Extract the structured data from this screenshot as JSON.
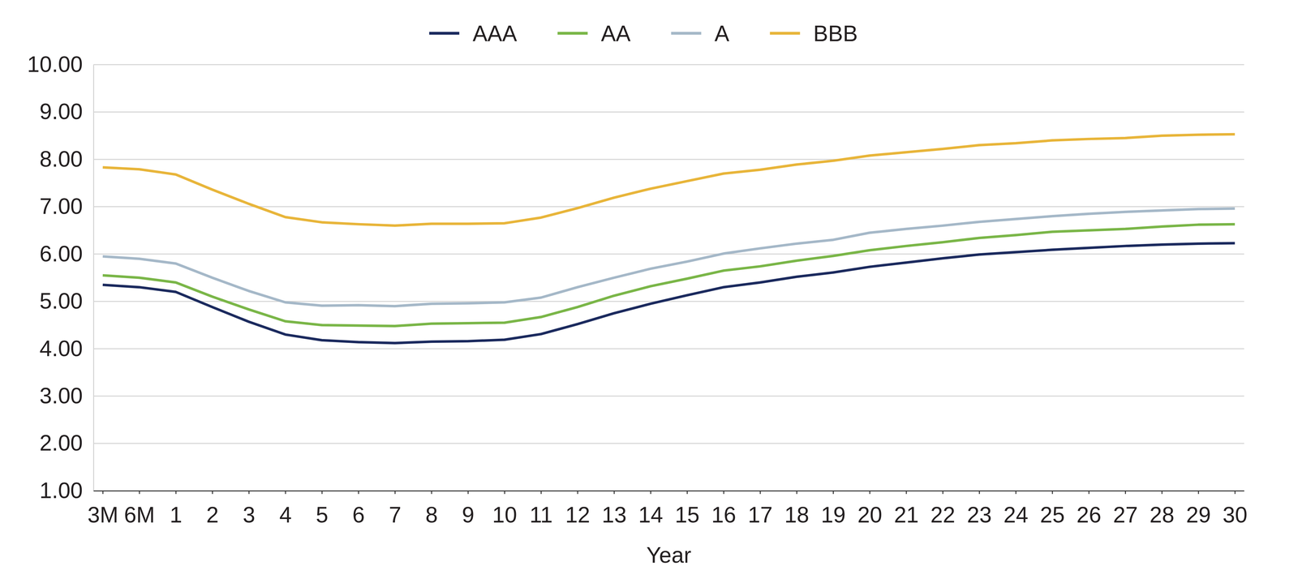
{
  "chart_data": {
    "type": "line",
    "xlabel": "Year",
    "categories": [
      "3M",
      "6M",
      "1",
      "2",
      "3",
      "4",
      "5",
      "6",
      "7",
      "8",
      "9",
      "10",
      "11",
      "12",
      "13",
      "14",
      "15",
      "16",
      "17",
      "18",
      "19",
      "20",
      "21",
      "22",
      "23",
      "24",
      "25",
      "26",
      "27",
      "28",
      "29",
      "30"
    ],
    "series": [
      {
        "name": "AAA",
        "color": "#1b2a5e",
        "values": [
          5.35,
          5.3,
          5.2,
          4.88,
          4.57,
          4.3,
          4.18,
          4.14,
          4.12,
          4.15,
          4.16,
          4.19,
          4.31,
          4.52,
          4.75,
          4.95,
          5.13,
          5.3,
          5.4,
          5.52,
          5.61,
          5.73,
          5.82,
          5.91,
          5.99,
          6.04,
          6.09,
          6.13,
          6.17,
          6.2,
          6.22,
          6.23
        ]
      },
      {
        "name": "AA",
        "color": "#7ab648",
        "values": [
          5.55,
          5.5,
          5.4,
          5.1,
          4.83,
          4.58,
          4.5,
          4.49,
          4.48,
          4.53,
          4.54,
          4.55,
          4.67,
          4.88,
          5.12,
          5.32,
          5.48,
          5.65,
          5.74,
          5.86,
          5.96,
          6.08,
          6.17,
          6.25,
          6.34,
          6.4,
          6.47,
          6.5,
          6.53,
          6.58,
          6.62,
          6.63
        ]
      },
      {
        "name": "A",
        "color": "#a5b8c8",
        "values": [
          5.95,
          5.9,
          5.8,
          5.5,
          5.22,
          4.98,
          4.91,
          4.92,
          4.9,
          4.95,
          4.96,
          4.98,
          5.08,
          5.3,
          5.5,
          5.69,
          5.84,
          6.01,
          6.12,
          6.22,
          6.3,
          6.45,
          6.53,
          6.6,
          6.68,
          6.74,
          6.8,
          6.85,
          6.89,
          6.92,
          6.95,
          6.96
        ]
      },
      {
        "name": "BBB",
        "color": "#e8b53a",
        "values": [
          7.83,
          7.79,
          7.68,
          7.36,
          7.06,
          6.78,
          6.67,
          6.63,
          6.6,
          6.64,
          6.64,
          6.65,
          6.77,
          6.97,
          7.19,
          7.38,
          7.54,
          7.7,
          7.78,
          7.89,
          7.97,
          8.08,
          8.15,
          8.22,
          8.3,
          8.34,
          8.4,
          8.43,
          8.45,
          8.5,
          8.52,
          8.53
        ]
      }
    ],
    "ylim": [
      1,
      10
    ],
    "yticks": [
      {
        "value": 1,
        "label": "1.00"
      },
      {
        "value": 2,
        "label": "2.00"
      },
      {
        "value": 3,
        "label": "3.00"
      },
      {
        "value": 4,
        "label": "4.00"
      },
      {
        "value": 5,
        "label": "5.00"
      },
      {
        "value": 6,
        "label": "6.00"
      },
      {
        "value": 7,
        "label": "7.00"
      },
      {
        "value": 8,
        "label": "8.00"
      },
      {
        "value": 9,
        "label": "9.00"
      },
      {
        "value": 10,
        "label": "10.00"
      }
    ],
    "grid": true,
    "legend": "top"
  }
}
